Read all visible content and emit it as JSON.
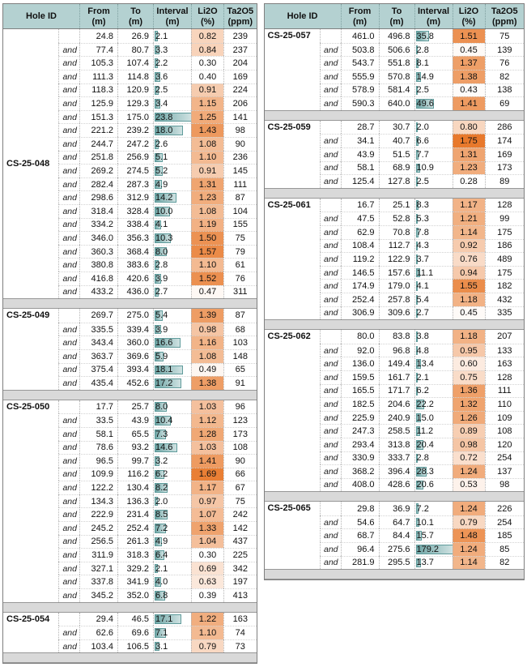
{
  "header": {
    "hole_id": "Hole ID",
    "and_label": "and",
    "cols": [
      {
        "key": "from",
        "line1": "From",
        "line2": "(m)"
      },
      {
        "key": "to",
        "line1": "To",
        "line2": "(m)"
      },
      {
        "key": "interval",
        "line1": "Interval",
        "line2": "(m)"
      },
      {
        "key": "li2o",
        "line1": "Li2O",
        "line2": "(%)"
      },
      {
        "key": "ta2o5",
        "line1": "Ta2O5",
        "line2": "(ppm)"
      }
    ]
  },
  "style": {
    "header_bg": "#b4d1d1",
    "separator_bg": "#d9d9d9",
    "bar_color_start": "#6fa6a6",
    "bar_color_end": "#cfe2e2",
    "bar_border": "#5f9b9b",
    "heat_max_color": "#e8792c",
    "heat_min_value": 0.4,
    "heat_max_value": 1.75
  },
  "row_fields": [
    "prefix",
    "from",
    "to",
    "interval",
    "li2o",
    "ta2o5"
  ],
  "tables": [
    {
      "side": "left",
      "bar_scale_max": 23.8,
      "groups": [
        {
          "hole_id": "CS-25-048",
          "id_valign": "middle",
          "rows": [
            [
              "",
              "24.8",
              "26.9",
              "2.1",
              "0.82",
              "239"
            ],
            [
              "and",
              "77.4",
              "80.7",
              "3.3",
              "0.84",
              "237"
            ],
            [
              "and",
              "105.3",
              "107.4",
              "2.2",
              "0.30",
              "204"
            ],
            [
              "and",
              "111.3",
              "114.8",
              "3.6",
              "0.40",
              "169"
            ],
            [
              "and",
              "118.3",
              "120.9",
              "2.5",
              "0.91",
              "224"
            ],
            [
              "and",
              "125.9",
              "129.3",
              "3.4",
              "1.15",
              "206"
            ],
            [
              "and",
              "151.3",
              "175.0",
              "23.8",
              "1.25",
              "141"
            ],
            [
              "and",
              "221.2",
              "239.2",
              "18.0",
              "1.43",
              "98"
            ],
            [
              "and",
              "244.7",
              "247.2",
              "2.6",
              "1.08",
              "90"
            ],
            [
              "and",
              "251.8",
              "256.9",
              "5.1",
              "1.10",
              "236"
            ],
            [
              "and",
              "269.2",
              "274.5",
              "5.2",
              "0.91",
              "145"
            ],
            [
              "and",
              "282.4",
              "287.3",
              "4.9",
              "1.31",
              "111"
            ],
            [
              "and",
              "298.6",
              "312.9",
              "14.2",
              "1.23",
              "87"
            ],
            [
              "and",
              "318.4",
              "328.4",
              "10.0",
              "1.08",
              "104"
            ],
            [
              "and",
              "334.2",
              "338.4",
              "4.1",
              "1.19",
              "155"
            ],
            [
              "and",
              "346.0",
              "356.3",
              "10.3",
              "1.50",
              "75"
            ],
            [
              "and",
              "360.3",
              "368.4",
              "8.0",
              "1.57",
              "79"
            ],
            [
              "and",
              "380.8",
              "383.6",
              "2.8",
              "1.10",
              "61"
            ],
            [
              "and",
              "416.8",
              "420.6",
              "3.9",
              "1.52",
              "76"
            ],
            [
              "and",
              "433.2",
              "436.0",
              "2.7",
              "0.47",
              "311"
            ]
          ]
        },
        {
          "hole_id": "CS-25-049",
          "id_valign": "top",
          "rows": [
            [
              "",
              "269.7",
              "275.0",
              "5.4",
              "1.39",
              "87"
            ],
            [
              "and",
              "335.5",
              "339.4",
              "3.9",
              "0.98",
              "68"
            ],
            [
              "and",
              "343.4",
              "360.0",
              "16.6",
              "1.16",
              "103"
            ],
            [
              "and",
              "363.7",
              "369.6",
              "5.9",
              "1.08",
              "148"
            ],
            [
              "and",
              "375.4",
              "393.4",
              "18.1",
              "0.49",
              "65"
            ],
            [
              "and",
              "435.4",
              "452.6",
              "17.2",
              "1.38",
              "91"
            ]
          ]
        },
        {
          "hole_id": "CS-25-050",
          "id_valign": "top",
          "rows": [
            [
              "",
              "17.7",
              "25.7",
              "8.0",
              "1.03",
              "96"
            ],
            [
              "and",
              "33.5",
              "43.9",
              "10.4",
              "1.12",
              "123"
            ],
            [
              "and",
              "58.1",
              "65.5",
              "7.3",
              "1.28",
              "173"
            ],
            [
              "and",
              "78.6",
              "93.2",
              "14.6",
              "1.03",
              "108"
            ],
            [
              "and",
              "96.5",
              "99.7",
              "3.2",
              "1.41",
              "90"
            ],
            [
              "and",
              "109.9",
              "116.2",
              "6.2",
              "1.69",
              "66"
            ],
            [
              "and",
              "122.2",
              "130.4",
              "8.2",
              "1.17",
              "67"
            ],
            [
              "and",
              "134.3",
              "136.3",
              "2.0",
              "0.97",
              "75"
            ],
            [
              "and",
              "222.9",
              "231.4",
              "8.5",
              "1.07",
              "242"
            ],
            [
              "and",
              "245.2",
              "252.4",
              "7.2",
              "1.33",
              "142"
            ],
            [
              "and",
              "256.5",
              "261.3",
              "4.9",
              "1.04",
              "437"
            ],
            [
              "and",
              "311.9",
              "318.3",
              "6.4",
              "0.30",
              "225"
            ],
            [
              "and",
              "327.1",
              "329.2",
              "2.1",
              "0.69",
              "342"
            ],
            [
              "and",
              "337.8",
              "341.9",
              "4.0",
              "0.63",
              "197"
            ],
            [
              "and",
              "345.2",
              "352.0",
              "6.8",
              "0.39",
              "413"
            ]
          ]
        },
        {
          "hole_id": "CS-25-054",
          "id_valign": "top",
          "rows": [
            [
              "",
              "29.4",
              "46.5",
              "17.1",
              "1.22",
              "163"
            ],
            [
              "and",
              "62.6",
              "69.6",
              "7.1",
              "1.10",
              "74"
            ],
            [
              "and",
              "103.4",
              "106.5",
              "3.1",
              "0.79",
              "73"
            ]
          ]
        }
      ]
    },
    {
      "side": "right",
      "bar_scale_max": 100,
      "groups": [
        {
          "hole_id": "CS-25-057",
          "id_valign": "top",
          "rows": [
            [
              "",
              "461.0",
              "496.8",
              "35.8",
              "1.51",
              "75"
            ],
            [
              "and",
              "503.8",
              "506.6",
              "2.8",
              "0.45",
              "139"
            ],
            [
              "and",
              "543.7",
              "551.8",
              "8.1",
              "1.37",
              "76"
            ],
            [
              "and",
              "555.9",
              "570.8",
              "14.9",
              "1.38",
              "82"
            ],
            [
              "and",
              "578.9",
              "581.4",
              "2.5",
              "0.43",
              "138"
            ],
            [
              "and",
              "590.3",
              "640.0",
              "49.6",
              "1.41",
              "69"
            ]
          ]
        },
        {
          "hole_id": "CS-25-059",
          "id_valign": "top",
          "rows": [
            [
              "",
              "28.7",
              "30.7",
              "2.0",
              "0.80",
              "286"
            ],
            [
              "and",
              "34.1",
              "40.7",
              "6.6",
              "1.75",
              "174"
            ],
            [
              "and",
              "43.9",
              "51.5",
              "7.7",
              "1.31",
              "169"
            ],
            [
              "and",
              "58.1",
              "68.9",
              "10.9",
              "1.23",
              "173"
            ],
            [
              "and",
              "125.4",
              "127.8",
              "2.5",
              "0.28",
              "89"
            ]
          ]
        },
        {
          "hole_id": "CS-25-061",
          "id_valign": "top",
          "rows": [
            [
              "",
              "16.7",
              "25.1",
              "8.3",
              "1.17",
              "128"
            ],
            [
              "and",
              "47.5",
              "52.8",
              "5.3",
              "1.21",
              "99"
            ],
            [
              "and",
              "62.9",
              "70.8",
              "7.8",
              "1.14",
              "175"
            ],
            [
              "and",
              "108.4",
              "112.7",
              "4.3",
              "0.92",
              "186"
            ],
            [
              "and",
              "119.2",
              "122.9",
              "3.7",
              "0.76",
              "489"
            ],
            [
              "and",
              "146.5",
              "157.6",
              "11.1",
              "0.94",
              "175"
            ],
            [
              "and",
              "174.9",
              "179.0",
              "4.1",
              "1.55",
              "182"
            ],
            [
              "and",
              "252.4",
              "257.8",
              "5.4",
              "1.18",
              "432"
            ],
            [
              "and",
              "306.9",
              "309.6",
              "2.7",
              "0.45",
              "335"
            ]
          ]
        },
        {
          "hole_id": "CS-25-062",
          "id_valign": "top",
          "rows": [
            [
              "",
              "80.0",
              "83.8",
              "3.8",
              "1.18",
              "207"
            ],
            [
              "and",
              "92.0",
              "96.8",
              "4.8",
              "0.95",
              "133"
            ],
            [
              "and",
              "136.0",
              "149.4",
              "13.4",
              "0.60",
              "163"
            ],
            [
              "and",
              "159.5",
              "161.7",
              "2.1",
              "0.75",
              "128"
            ],
            [
              "and",
              "165.5",
              "171.7",
              "6.2",
              "1.36",
              "111"
            ],
            [
              "and",
              "182.5",
              "204.6",
              "22.2",
              "1.32",
              "110"
            ],
            [
              "and",
              "225.9",
              "240.9",
              "15.0",
              "1.26",
              "109"
            ],
            [
              "and",
              "247.3",
              "258.5",
              "11.2",
              "0.89",
              "108"
            ],
            [
              "and",
              "293.4",
              "313.8",
              "20.4",
              "0.98",
              "120"
            ],
            [
              "and",
              "330.9",
              "333.7",
              "2.8",
              "0.72",
              "254"
            ],
            [
              "and",
              "368.2",
              "396.4",
              "28.3",
              "1.24",
              "137"
            ],
            [
              "and",
              "408.0",
              "428.6",
              "20.6",
              "0.53",
              "98"
            ]
          ]
        },
        {
          "hole_id": "CS-25-065",
          "id_valign": "top",
          "rows": [
            [
              "",
              "29.8",
              "36.9",
              "7.2",
              "1.24",
              "226"
            ],
            [
              "and",
              "54.6",
              "64.7",
              "10.1",
              "0.79",
              "254"
            ],
            [
              "and",
              "68.7",
              "84.4",
              "15.7",
              "1.48",
              "185"
            ],
            [
              "and",
              "96.4",
              "275.6",
              "179.2",
              "1.24",
              "85"
            ],
            [
              "and",
              "281.9",
              "295.5",
              "13.7",
              "1.14",
              "82"
            ]
          ]
        }
      ]
    }
  ]
}
